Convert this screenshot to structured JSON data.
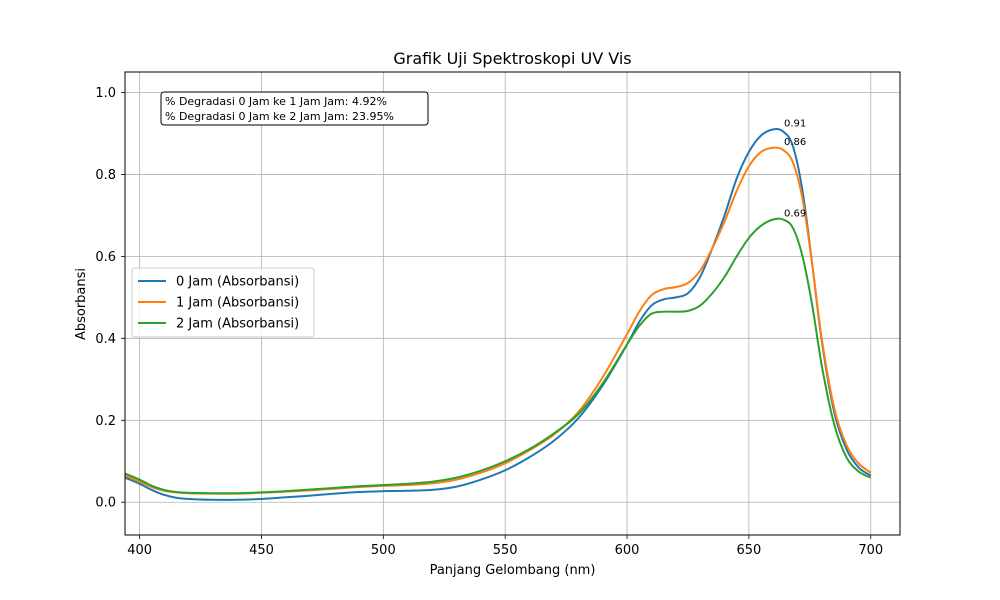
{
  "chart_data": {
    "type": "line",
    "title": "Grafik Uji Spektroskopi UV Vis",
    "xlabel": "Panjang Gelombang (nm)",
    "ylabel": "Absorbansi",
    "xlim": [
      394,
      712
    ],
    "ylim": [
      -0.08,
      1.05
    ],
    "xticks": [
      400,
      450,
      500,
      550,
      600,
      650,
      700
    ],
    "yticks": [
      0.0,
      0.2,
      0.4,
      0.6,
      0.8,
      1.0
    ],
    "xtick_labels": [
      "400",
      "450",
      "500",
      "550",
      "600",
      "650",
      "700"
    ],
    "ytick_labels": [
      "0.0",
      "0.2",
      "0.4",
      "0.6",
      "0.8",
      "1.0"
    ],
    "grid": true,
    "legend_position": "center-left",
    "annotation_box": [
      "% Degradasi 0 Jam ke 1 Jam Jam: 4.92%",
      "% Degradasi 0 Jam ke 2 Jam Jam: 23.95%"
    ],
    "x": [
      394,
      400,
      405,
      410,
      415,
      420,
      430,
      440,
      450,
      460,
      470,
      480,
      490,
      500,
      510,
      520,
      530,
      540,
      550,
      560,
      570,
      580,
      590,
      600,
      605,
      610,
      615,
      620,
      625,
      630,
      635,
      640,
      645,
      650,
      655,
      660,
      664,
      668,
      672,
      676,
      680,
      685,
      690,
      695,
      700
    ],
    "series": [
      {
        "name": "0 Jam (Absorbansi)",
        "color": "#1f77b4",
        "values": [
          0.06,
          0.045,
          0.03,
          0.018,
          0.011,
          0.008,
          0.006,
          0.006,
          0.008,
          0.012,
          0.016,
          0.021,
          0.025,
          0.027,
          0.028,
          0.03,
          0.038,
          0.055,
          0.078,
          0.11,
          0.15,
          0.205,
          0.285,
          0.385,
          0.44,
          0.48,
          0.495,
          0.5,
          0.51,
          0.55,
          0.62,
          0.7,
          0.79,
          0.855,
          0.895,
          0.91,
          0.905,
          0.87,
          0.76,
          0.58,
          0.39,
          0.22,
          0.13,
          0.085,
          0.065
        ]
      },
      {
        "name": "1 Jam (Absorbansi)",
        "color": "#ff7f0e",
        "values": [
          0.065,
          0.05,
          0.037,
          0.028,
          0.024,
          0.022,
          0.021,
          0.021,
          0.023,
          0.026,
          0.029,
          0.033,
          0.037,
          0.04,
          0.042,
          0.046,
          0.055,
          0.072,
          0.095,
          0.127,
          0.165,
          0.22,
          0.305,
          0.41,
          0.465,
          0.505,
          0.52,
          0.525,
          0.535,
          0.565,
          0.62,
          0.685,
          0.76,
          0.82,
          0.855,
          0.865,
          0.86,
          0.83,
          0.74,
          0.58,
          0.395,
          0.23,
          0.14,
          0.095,
          0.072
        ]
      },
      {
        "name": "2 Jam (Absorbansi)",
        "color": "#2ca02c",
        "values": [
          0.07,
          0.055,
          0.04,
          0.03,
          0.025,
          0.023,
          0.022,
          0.022,
          0.024,
          0.027,
          0.031,
          0.035,
          0.039,
          0.042,
          0.045,
          0.05,
          0.06,
          0.077,
          0.1,
          0.13,
          0.168,
          0.215,
          0.29,
          0.385,
          0.43,
          0.46,
          0.465,
          0.465,
          0.467,
          0.48,
          0.51,
          0.55,
          0.6,
          0.645,
          0.675,
          0.69,
          0.69,
          0.67,
          0.6,
          0.48,
          0.33,
          0.19,
          0.11,
          0.075,
          0.06
        ]
      }
    ],
    "peak_labels": [
      {
        "x": 664,
        "y": 0.91,
        "text": "0.91"
      },
      {
        "x": 664,
        "y": 0.865,
        "text": "0.86"
      },
      {
        "x": 664,
        "y": 0.69,
        "text": "0.69"
      }
    ]
  }
}
